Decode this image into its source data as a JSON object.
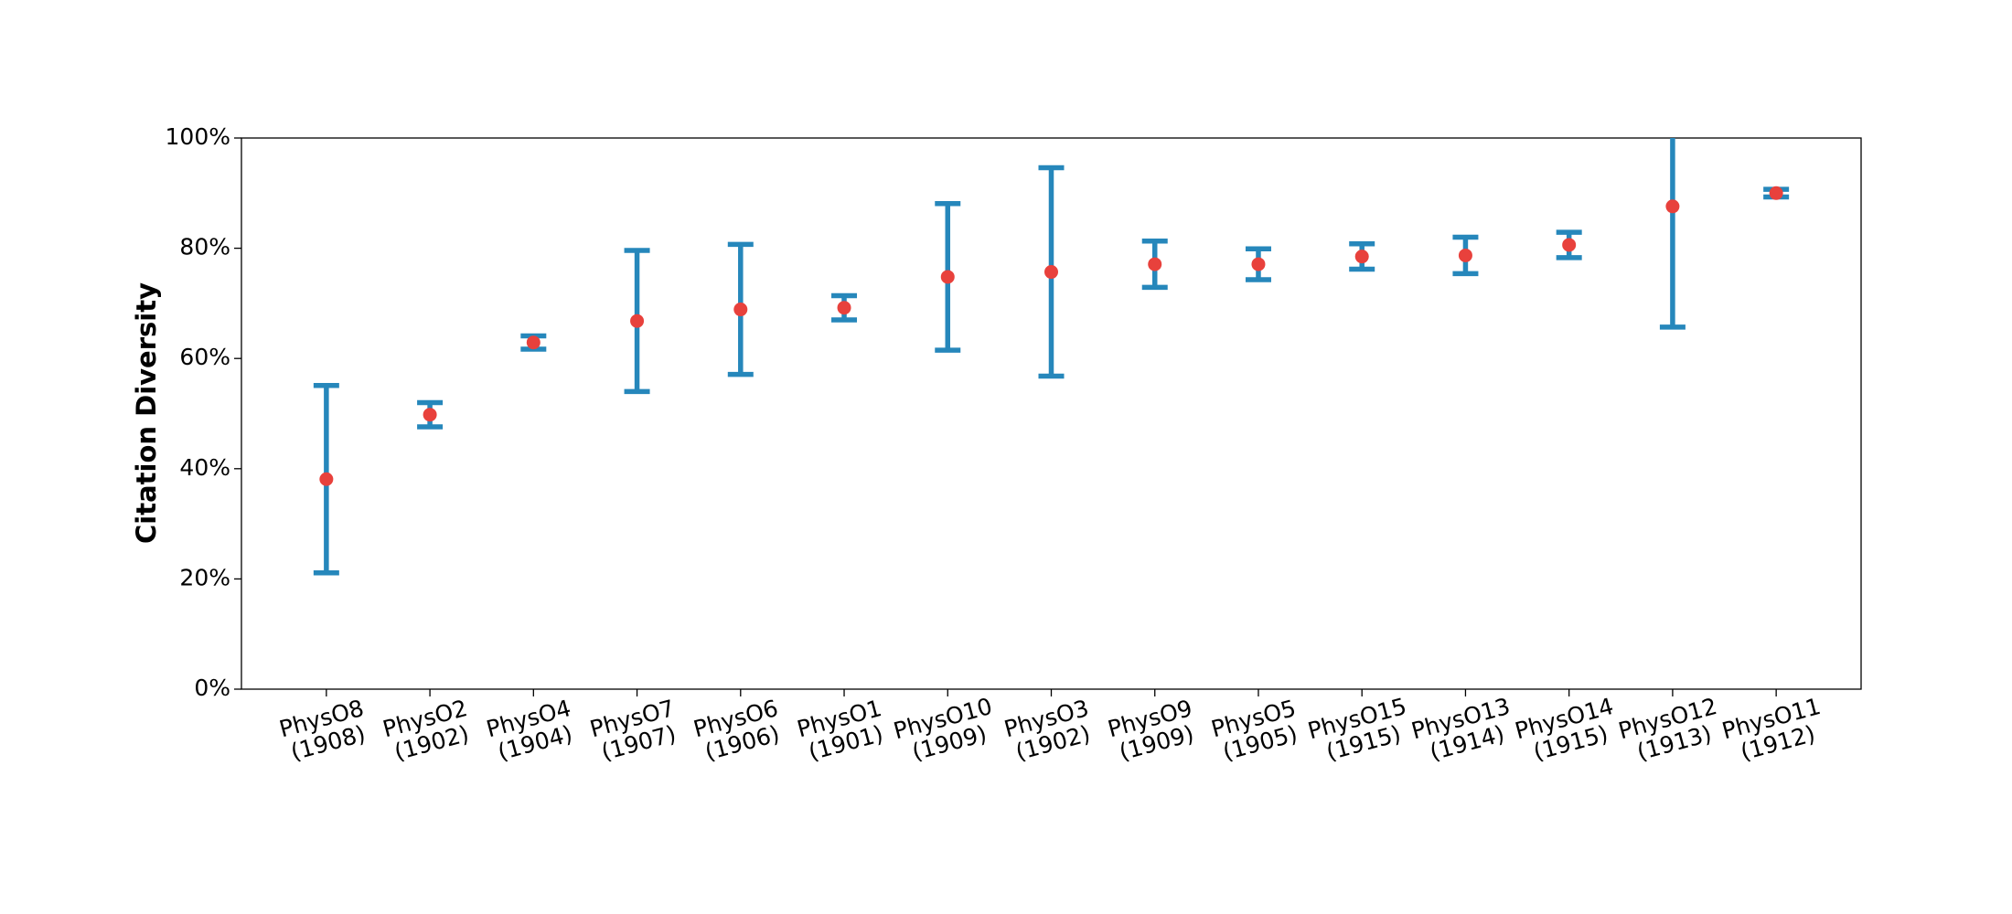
{
  "chart_data": {
    "type": "errorbar",
    "ylabel": "Citation Diversity",
    "categories": [
      "PhysO8\n(1908)",
      "PhysO2\n(1902)",
      "PhysO4\n(1904)",
      "PhysO7\n(1907)",
      "PhysO6\n(1906)",
      "PhysO1\n(1901)",
      "PhysO10\n(1909)",
      "PhysO3\n(1902)",
      "PhysO9\n(1909)",
      "PhysO5\n(1905)",
      "PhysO15\n(1915)",
      "PhysO13\n(1914)",
      "PhysO14\n(1915)",
      "PhysO12\n(1913)",
      "PhysO11\n(1912)"
    ],
    "values": [
      38.1,
      49.8,
      62.9,
      66.8,
      68.9,
      69.2,
      74.8,
      75.7,
      77.1,
      77.1,
      78.5,
      78.7,
      80.6,
      87.6,
      90.0
    ],
    "errors": [
      17.0,
      2.2,
      1.2,
      12.8,
      11.8,
      2.2,
      13.3,
      18.9,
      4.2,
      2.8,
      2.3,
      3.3,
      2.3,
      21.9,
      0.7
    ],
    "color": "#2687bb",
    "marker_color": "#e8413c",
    "ylim": [
      0,
      100
    ],
    "yticks": [
      {
        "value": 0,
        "label": "0%"
      },
      {
        "value": 20,
        "label": "20%"
      },
      {
        "value": 40,
        "label": "40%"
      },
      {
        "value": 60,
        "label": "60%"
      },
      {
        "value": 80,
        "label": "80%"
      },
      {
        "value": 100,
        "label": "100%"
      }
    ]
  }
}
